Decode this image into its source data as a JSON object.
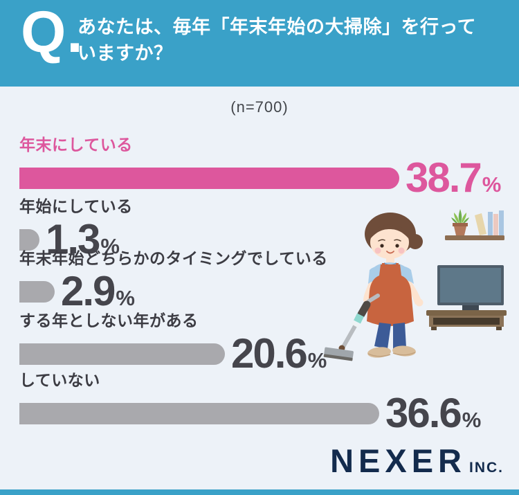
{
  "header": {
    "q_label": "Q.",
    "question_line1": "あなたは、毎年「年末年始の大掃除」を行って",
    "question_line2": "いますか？"
  },
  "sample_label": "(n=700)",
  "chart_data": {
    "type": "bar",
    "orientation": "horizontal",
    "title": "あなたは、毎年「年末年始の大掃除」を行っていますか？",
    "sample_size": 700,
    "unit": "%",
    "categories": [
      "年末にしている",
      "年始にしている",
      "年末年始どちらかのタイミングでしている",
      "する年としない年がある",
      "していない"
    ],
    "values": [
      38.7,
      1.3,
      2.9,
      20.6,
      36.6
    ],
    "highlight_index": 0,
    "bar_colors": {
      "highlight": "#dd579d",
      "default": "#a9a9ad"
    },
    "xlim": [
      0,
      40
    ],
    "legend": "none",
    "grid": "off"
  },
  "rows": [
    {
      "label": "年末にしている",
      "value": "38.7",
      "unit": "%"
    },
    {
      "label": "年始にしている",
      "value": "1.3",
      "unit": "%"
    },
    {
      "label": "年末年始どちらかのタイミングでしている",
      "value": "2.9",
      "unit": "%"
    },
    {
      "label": "する年としない年がある",
      "value": "20.6",
      "unit": "%"
    },
    {
      "label": "していない",
      "value": "36.6",
      "unit": "%"
    }
  ],
  "logo": {
    "brand": "NEXER",
    "suffix": "INC."
  },
  "colors": {
    "header_blue": "#3aa1c8",
    "accent_pink": "#dd579d",
    "bar_gray": "#a9a9ad",
    "logo_navy": "#132b4d",
    "background": "#edf2f8"
  },
  "illustration": {
    "name": "woman-vacuuming-living-room"
  }
}
